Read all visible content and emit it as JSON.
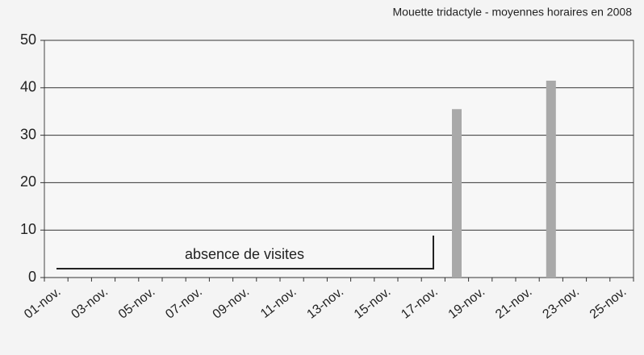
{
  "chart_data": {
    "type": "bar",
    "title": "Mouette tridactyle - moyennes horaires en 2008",
    "annotation": "absence de visites",
    "categories": [
      "01-nov.",
      null,
      "03-nov.",
      null,
      "05-nov.",
      null,
      "07-nov.",
      null,
      "09-nov.",
      null,
      "11-nov.",
      null,
      "13-nov.",
      null,
      "15-nov.",
      null,
      "17-nov.",
      null,
      "19-nov.",
      null,
      "21-nov.",
      null,
      "23-nov.",
      null,
      "25-nov."
    ],
    "values": [
      0,
      0,
      0,
      0,
      0,
      0,
      0,
      0,
      0,
      0,
      0,
      0,
      0,
      0,
      0,
      0,
      0,
      35.5,
      0,
      0,
      0,
      41.5,
      0,
      0,
      0
    ],
    "color": "#a9a9a9",
    "ylim": [
      0,
      50
    ],
    "yticks": [
      0,
      10,
      20,
      30,
      40,
      50
    ],
    "grid": true
  }
}
